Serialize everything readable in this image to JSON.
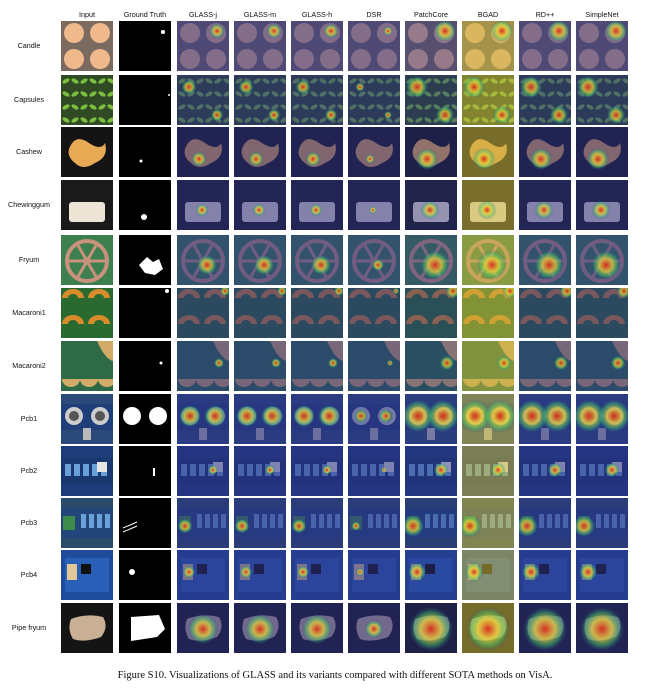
{
  "figure": {
    "columns": [
      "Input",
      "Ground Truth",
      "GLASS-j",
      "GLASS-m",
      "GLASS-h",
      "DSR",
      "PatchCore",
      "BGAD",
      "RD++",
      "SimpleNet"
    ],
    "rows": [
      "Candle",
      "Capsules",
      "Cashew",
      "Chewinggum",
      "Fryum",
      "Macaroni1",
      "Macaroni2",
      "Pcb1",
      "Pcb2",
      "Pcb3",
      "Pcb4",
      "Pipe fryum"
    ],
    "caption": "Figure S10. Visualizations of GLASS and its variants compared with different SOTA methods on VisA.",
    "colors": {
      "heatmap_low": "#2b2f86",
      "heatmap_high": "#d9281e",
      "bgad_background": "#c9b53a",
      "mask_background": "#000000",
      "mask_foreground": "#ffffff"
    }
  }
}
